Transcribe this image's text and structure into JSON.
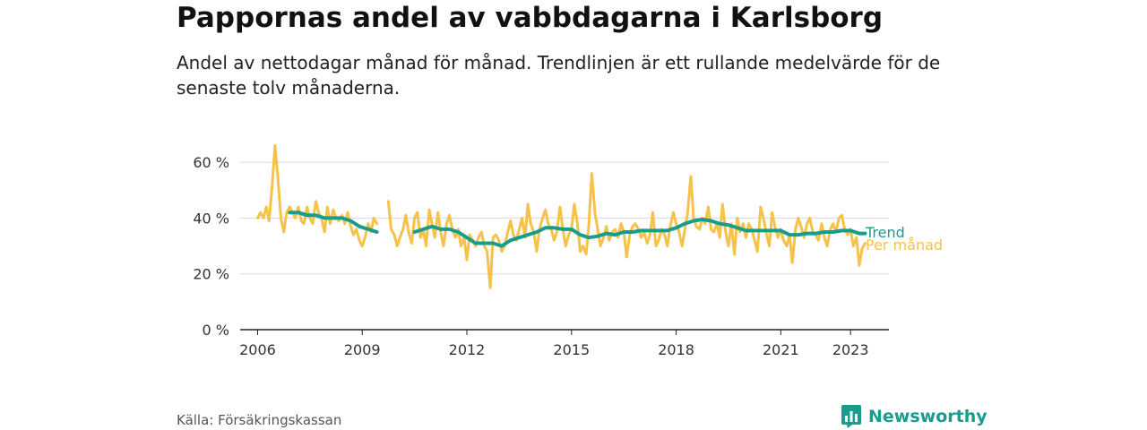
{
  "title": "Pappornas andel av vabbdagarna i Karlsborg",
  "subtitle": "Andel av nettodagar månad för månad. Trendlinjen är ett rullande medelvärde för de senaste tolv månaderna.",
  "source": "Källa: Försäkringskassan",
  "brand": "Newsworthy",
  "colors": {
    "monthly": "#f7c24a",
    "trend": "#1a9c8c",
    "grid": "#d9d9d9",
    "axis": "#222222"
  },
  "chart_data": {
    "type": "line",
    "title": "Pappornas andel av vabbdagarna i Karlsborg",
    "xlabel": "",
    "ylabel": "",
    "ylim": [
      0,
      70
    ],
    "xlim": [
      2005.5,
      2024.1
    ],
    "y_ticks": [
      0,
      20,
      40,
      60
    ],
    "y_tick_labels": [
      "0 %",
      "20 %",
      "40 %",
      "60 %"
    ],
    "x_ticks": [
      2006,
      2009,
      2012,
      2015,
      2018,
      2021,
      2023
    ],
    "x_tick_labels": [
      "2006",
      "2009",
      "2012",
      "2015",
      "2018",
      "2021",
      "2023"
    ],
    "grid": true,
    "series": [
      {
        "name": "Per månad",
        "points": [
          [
            2006.0,
            40
          ],
          [
            2006.08,
            42
          ],
          [
            2006.17,
            40
          ],
          [
            2006.25,
            44
          ],
          [
            2006.33,
            39
          ],
          [
            2006.42,
            52
          ],
          [
            2006.5,
            66
          ],
          [
            2006.58,
            55
          ],
          [
            2006.67,
            40
          ],
          [
            2006.75,
            35
          ],
          [
            2006.83,
            42
          ],
          [
            2006.92,
            44
          ],
          [
            2007.0,
            42
          ],
          [
            2007.08,
            40
          ],
          [
            2007.17,
            44
          ],
          [
            2007.25,
            39
          ],
          [
            2007.33,
            38
          ],
          [
            2007.42,
            44
          ],
          [
            2007.5,
            40
          ],
          [
            2007.58,
            38
          ],
          [
            2007.67,
            46
          ],
          [
            2007.75,
            42
          ],
          [
            2007.83,
            40
          ],
          [
            2007.92,
            35
          ],
          [
            2008.0,
            44
          ],
          [
            2008.08,
            38
          ],
          [
            2008.17,
            43
          ],
          [
            2008.25,
            40
          ],
          [
            2008.33,
            39
          ],
          [
            2008.42,
            41
          ],
          [
            2008.5,
            38
          ],
          [
            2008.58,
            42
          ],
          [
            2008.67,
            37
          ],
          [
            2008.75,
            34
          ],
          [
            2008.83,
            36
          ],
          [
            2008.92,
            32
          ],
          [
            2009.0,
            30
          ],
          [
            2009.08,
            33
          ],
          [
            2009.17,
            38
          ],
          [
            2009.25,
            35
          ],
          [
            2009.33,
            40
          ],
          [
            2009.42,
            38
          ],
          [
            2009.75,
            46
          ],
          [
            2009.83,
            36
          ],
          [
            2009.92,
            34
          ],
          [
            2010.0,
            30
          ],
          [
            2010.08,
            33
          ],
          [
            2010.17,
            36
          ],
          [
            2010.25,
            41
          ],
          [
            2010.33,
            35
          ],
          [
            2010.42,
            31
          ],
          [
            2010.5,
            40
          ],
          [
            2010.58,
            42
          ],
          [
            2010.67,
            33
          ],
          [
            2010.75,
            36
          ],
          [
            2010.83,
            30
          ],
          [
            2010.92,
            43
          ],
          [
            2011.0,
            38
          ],
          [
            2011.08,
            33
          ],
          [
            2011.17,
            42
          ],
          [
            2011.25,
            35
          ],
          [
            2011.33,
            30
          ],
          [
            2011.42,
            38
          ],
          [
            2011.5,
            41
          ],
          [
            2011.58,
            36
          ],
          [
            2011.67,
            33
          ],
          [
            2011.75,
            36
          ],
          [
            2011.83,
            30
          ],
          [
            2011.92,
            33
          ],
          [
            2012.0,
            25
          ],
          [
            2012.08,
            34
          ],
          [
            2012.17,
            32
          ],
          [
            2012.25,
            30
          ],
          [
            2012.33,
            33
          ],
          [
            2012.42,
            35
          ],
          [
            2012.5,
            30
          ],
          [
            2012.58,
            28
          ],
          [
            2012.67,
            15
          ],
          [
            2012.75,
            33
          ],
          [
            2012.83,
            34
          ],
          [
            2012.92,
            32
          ],
          [
            2013.0,
            28
          ],
          [
            2013.08,
            30
          ],
          [
            2013.17,
            35
          ],
          [
            2013.25,
            39
          ],
          [
            2013.33,
            34
          ],
          [
            2013.42,
            32
          ],
          [
            2013.5,
            36
          ],
          [
            2013.58,
            40
          ],
          [
            2013.67,
            33
          ],
          [
            2013.75,
            45
          ],
          [
            2013.83,
            38
          ],
          [
            2013.92,
            35
          ],
          [
            2014.0,
            28
          ],
          [
            2014.08,
            36
          ],
          [
            2014.17,
            40
          ],
          [
            2014.25,
            43
          ],
          [
            2014.33,
            38
          ],
          [
            2014.42,
            36
          ],
          [
            2014.5,
            32
          ],
          [
            2014.58,
            35
          ],
          [
            2014.67,
            44
          ],
          [
            2014.75,
            36
          ],
          [
            2014.83,
            30
          ],
          [
            2014.92,
            34
          ],
          [
            2015.0,
            36
          ],
          [
            2015.08,
            45
          ],
          [
            2015.17,
            38
          ],
          [
            2015.25,
            28
          ],
          [
            2015.33,
            30
          ],
          [
            2015.42,
            27
          ],
          [
            2015.5,
            38
          ],
          [
            2015.58,
            56
          ],
          [
            2015.67,
            42
          ],
          [
            2015.75,
            36
          ],
          [
            2015.83,
            30
          ],
          [
            2015.92,
            33
          ],
          [
            2016.0,
            37
          ],
          [
            2016.08,
            32
          ],
          [
            2016.17,
            35
          ],
          [
            2016.25,
            36
          ],
          [
            2016.33,
            33
          ],
          [
            2016.42,
            38
          ],
          [
            2016.5,
            35
          ],
          [
            2016.58,
            26
          ],
          [
            2016.67,
            34
          ],
          [
            2016.75,
            37
          ],
          [
            2016.83,
            38
          ],
          [
            2016.92,
            36
          ],
          [
            2017.0,
            33
          ],
          [
            2017.08,
            35
          ],
          [
            2017.17,
            31
          ],
          [
            2017.25,
            34
          ],
          [
            2017.33,
            42
          ],
          [
            2017.42,
            30
          ],
          [
            2017.5,
            32
          ],
          [
            2017.58,
            36
          ],
          [
            2017.67,
            34
          ],
          [
            2017.75,
            30
          ],
          [
            2017.83,
            37
          ],
          [
            2017.92,
            42
          ],
          [
            2018.0,
            38
          ],
          [
            2018.08,
            35
          ],
          [
            2018.17,
            30
          ],
          [
            2018.25,
            36
          ],
          [
            2018.33,
            42
          ],
          [
            2018.42,
            55
          ],
          [
            2018.5,
            40
          ],
          [
            2018.58,
            37
          ],
          [
            2018.67,
            36
          ],
          [
            2018.75,
            40
          ],
          [
            2018.83,
            38
          ],
          [
            2018.92,
            44
          ],
          [
            2019.0,
            36
          ],
          [
            2019.08,
            35
          ],
          [
            2019.17,
            38
          ],
          [
            2019.25,
            33
          ],
          [
            2019.33,
            45
          ],
          [
            2019.42,
            35
          ],
          [
            2019.5,
            30
          ],
          [
            2019.58,
            38
          ],
          [
            2019.67,
            27
          ],
          [
            2019.75,
            40
          ],
          [
            2019.83,
            35
          ],
          [
            2019.92,
            38
          ],
          [
            2020.0,
            33
          ],
          [
            2020.08,
            38
          ],
          [
            2020.17,
            36
          ],
          [
            2020.25,
            32
          ],
          [
            2020.33,
            28
          ],
          [
            2020.42,
            44
          ],
          [
            2020.5,
            40
          ],
          [
            2020.58,
            35
          ],
          [
            2020.67,
            30
          ],
          [
            2020.75,
            42
          ],
          [
            2020.83,
            37
          ],
          [
            2020.92,
            33
          ],
          [
            2021.0,
            36
          ],
          [
            2021.08,
            32
          ],
          [
            2021.17,
            30
          ],
          [
            2021.25,
            34
          ],
          [
            2021.33,
            24
          ],
          [
            2021.42,
            36
          ],
          [
            2021.5,
            40
          ],
          [
            2021.58,
            37
          ],
          [
            2021.67,
            33
          ],
          [
            2021.75,
            38
          ],
          [
            2021.83,
            40
          ],
          [
            2021.92,
            35
          ],
          [
            2022.0,
            34
          ],
          [
            2022.08,
            32
          ],
          [
            2022.17,
            38
          ],
          [
            2022.25,
            33
          ],
          [
            2022.33,
            30
          ],
          [
            2022.42,
            36
          ],
          [
            2022.5,
            38
          ],
          [
            2022.58,
            35
          ],
          [
            2022.67,
            40
          ],
          [
            2022.75,
            41
          ],
          [
            2022.83,
            36
          ],
          [
            2022.92,
            34
          ],
          [
            2023.0,
            36
          ],
          [
            2023.08,
            30
          ],
          [
            2023.17,
            33
          ],
          [
            2023.25,
            23
          ],
          [
            2023.33,
            29
          ],
          [
            2023.42,
            31
          ]
        ],
        "gaps_after": [
          2009.42
        ]
      },
      {
        "name": "Trend",
        "points": [
          [
            2006.92,
            42
          ],
          [
            2007.17,
            42
          ],
          [
            2007.42,
            41
          ],
          [
            2007.67,
            41
          ],
          [
            2007.92,
            40
          ],
          [
            2008.17,
            40
          ],
          [
            2008.42,
            40
          ],
          [
            2008.67,
            39
          ],
          [
            2008.92,
            37
          ],
          [
            2009.17,
            36
          ],
          [
            2009.42,
            35
          ],
          [
            2010.5,
            35
          ],
          [
            2010.75,
            36
          ],
          [
            2011.0,
            37
          ],
          [
            2011.25,
            36
          ],
          [
            2011.5,
            36
          ],
          [
            2011.75,
            35
          ],
          [
            2012.0,
            33
          ],
          [
            2012.25,
            31
          ],
          [
            2012.5,
            31
          ],
          [
            2012.75,
            31
          ],
          [
            2013.0,
            30
          ],
          [
            2013.25,
            32
          ],
          [
            2013.5,
            33
          ],
          [
            2013.75,
            34
          ],
          [
            2014.0,
            35
          ],
          [
            2014.25,
            36.5
          ],
          [
            2014.5,
            36.5
          ],
          [
            2014.75,
            36
          ],
          [
            2015.0,
            36
          ],
          [
            2015.25,
            34
          ],
          [
            2015.5,
            33
          ],
          [
            2015.75,
            33.5
          ],
          [
            2016.0,
            34.5
          ],
          [
            2016.25,
            34
          ],
          [
            2016.5,
            35
          ],
          [
            2016.75,
            35
          ],
          [
            2017.0,
            35.5
          ],
          [
            2017.25,
            35.5
          ],
          [
            2017.5,
            35.5
          ],
          [
            2017.75,
            35.5
          ],
          [
            2018.0,
            36.5
          ],
          [
            2018.25,
            38
          ],
          [
            2018.5,
            39
          ],
          [
            2018.75,
            39.5
          ],
          [
            2019.0,
            39
          ],
          [
            2019.25,
            38
          ],
          [
            2019.5,
            37.5
          ],
          [
            2019.75,
            36.5
          ],
          [
            2020.0,
            35.5
          ],
          [
            2020.25,
            35.5
          ],
          [
            2020.5,
            35.5
          ],
          [
            2020.75,
            35.5
          ],
          [
            2021.0,
            35.5
          ],
          [
            2021.25,
            34
          ],
          [
            2021.5,
            34
          ],
          [
            2021.75,
            34.5
          ],
          [
            2022.0,
            34.5
          ],
          [
            2022.25,
            35
          ],
          [
            2022.5,
            35
          ],
          [
            2022.75,
            35.5
          ],
          [
            2023.0,
            35.5
          ],
          [
            2023.25,
            34.5
          ],
          [
            2023.42,
            34.5
          ]
        ],
        "gaps_after": [
          2009.42
        ]
      }
    ]
  }
}
